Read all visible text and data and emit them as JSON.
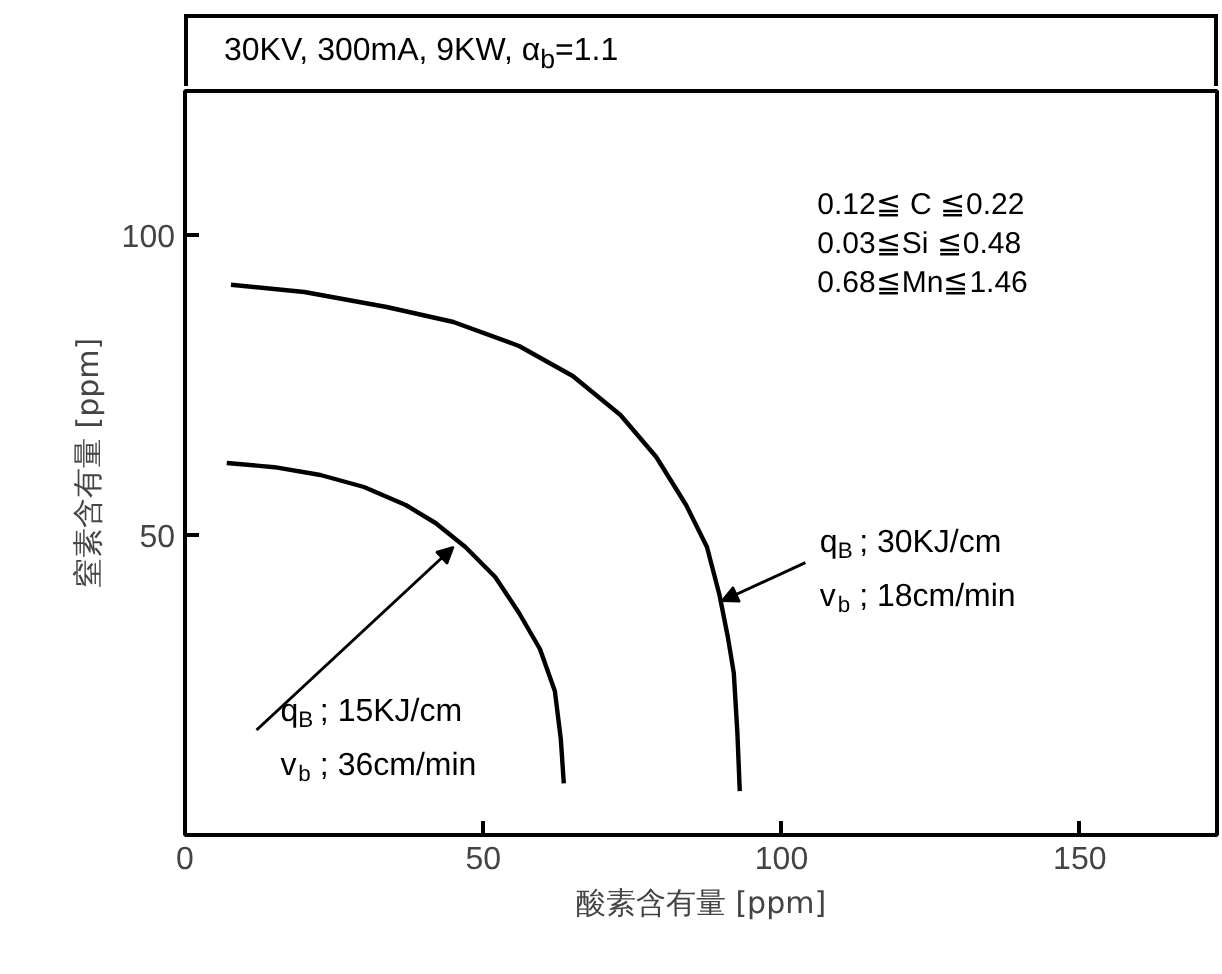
{
  "chart_data": {
    "type": "line",
    "title": "30KV, 300mA, 9KW, α$_{b}$=1.1",
    "xlabel": "酸素含有量 [ppm]",
    "ylabel": "窒素含有量 [ppm]",
    "xlim": [
      0,
      173
    ],
    "ylim": [
      0,
      124
    ],
    "xticks": [
      0,
      50,
      100,
      150
    ],
    "yticks": [
      50,
      100
    ],
    "grid": false,
    "series": [
      {
        "color": "#000000",
        "x": [
          7.7,
          20,
          33.8,
          45,
          56,
          65,
          73,
          79,
          84,
          87.5,
          89.6,
          91,
          92,
          92.6,
          93
        ],
        "values": [
          91.7,
          90.5,
          88,
          85.5,
          81.5,
          76.5,
          70,
          63,
          55,
          48,
          40,
          33,
          27,
          17,
          7.3
        ]
      },
      {
        "color": "#000000",
        "x": [
          7,
          15,
          22.7,
          30,
          37,
          42,
          47,
          52,
          56,
          59.5,
          62,
          63,
          63.5
        ],
        "values": [
          62,
          61.3,
          60,
          58,
          55,
          52,
          48,
          43,
          37,
          31,
          24,
          16,
          8.6
        ]
      }
    ],
    "annotations": [
      "0.12≦ C ≦0.22",
      "0.03≦Si ≦0.48",
      "0.68≦Mn≦1.46",
      {
        "text": "q$_{B}$ ; 15KJ/cm\nv$_{b}$ ; 36cm/min",
        "x": 45,
        "y": 48
      },
      {
        "text": "q$_{B}$ ; 30KJ/cm\nv$_{b}$ ; 18cm/min",
        "x": 90,
        "y": 39
      }
    ]
  }
}
